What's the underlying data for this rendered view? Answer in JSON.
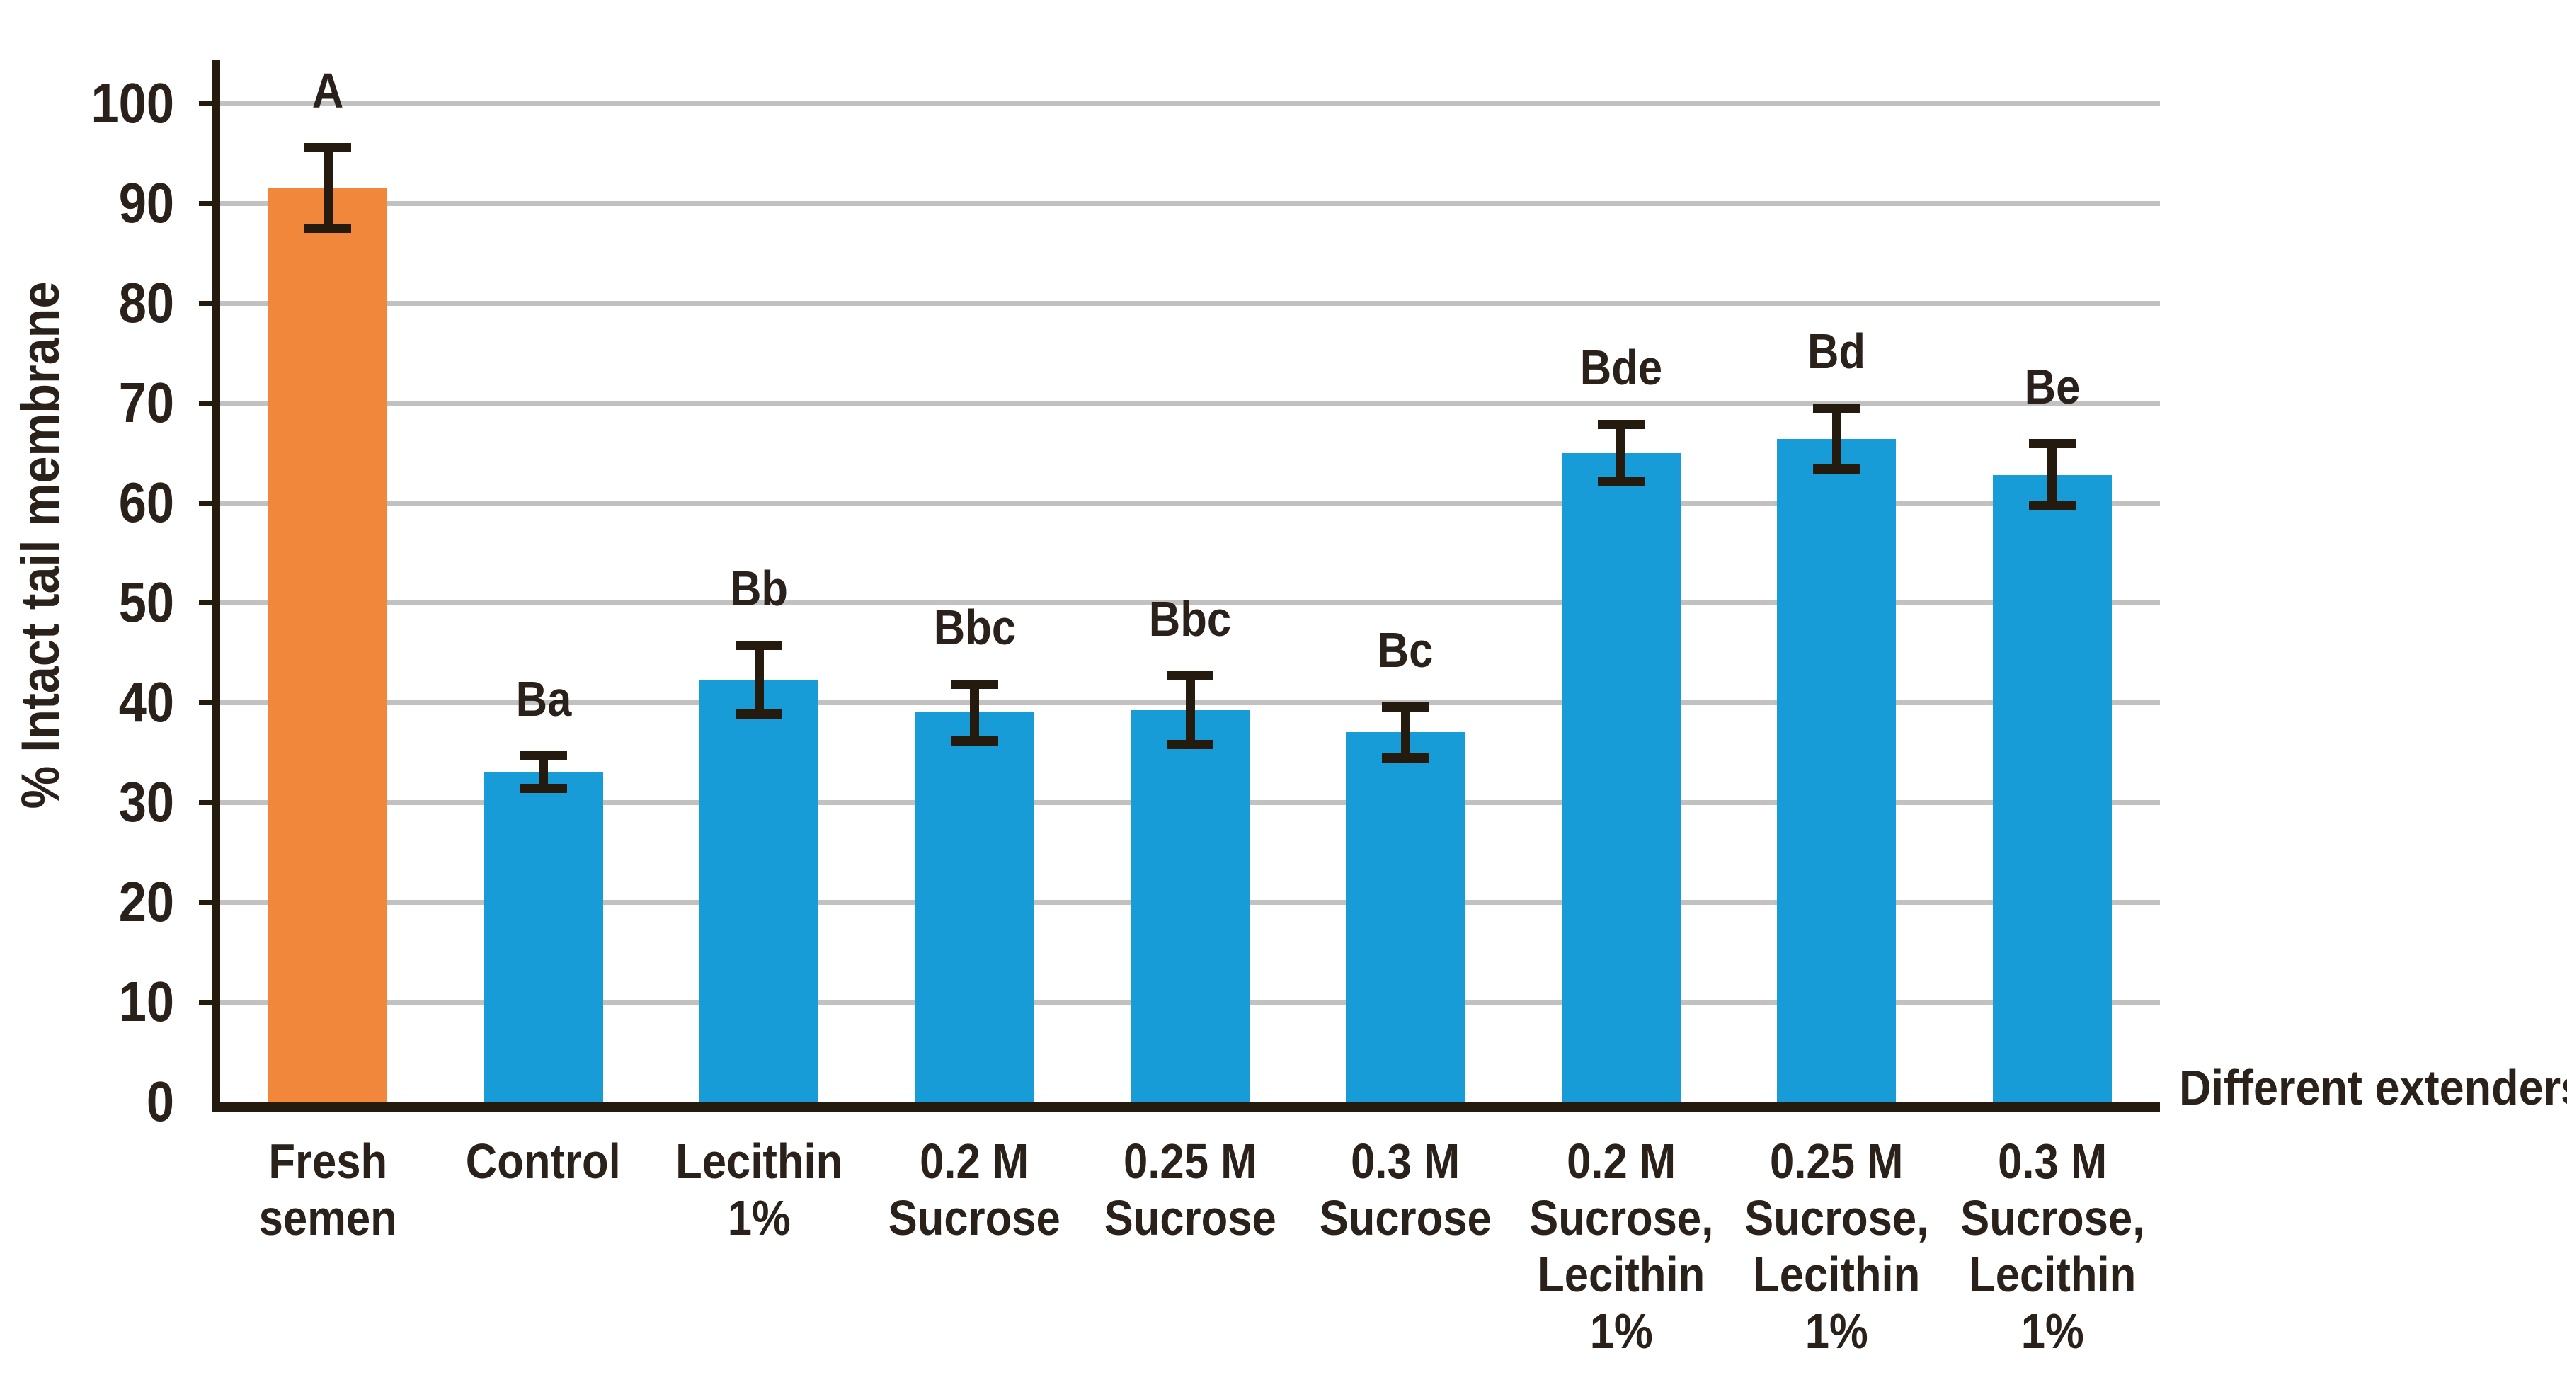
{
  "figure": {
    "y_axis_title": "% Intact tail membrane",
    "x_axis_title": "Different extenders"
  },
  "chart_data": {
    "type": "bar",
    "title": "",
    "ylabel": "% Intact tail membrane",
    "xlabel": "Different extenders",
    "ylim": [
      0,
      100
    ],
    "yticks": [
      0,
      10,
      20,
      30,
      40,
      50,
      60,
      70,
      80,
      90,
      100
    ],
    "grid": true,
    "legend": "none",
    "categories": [
      "Fresh\nsemen",
      "Control",
      "Lecithin\n1%",
      "0.2 M\nSucrose",
      "0.25 M\nSucrose",
      "0.3 M\nSucrose",
      "0.2 M\nSucrose,\nLecithin\n1%",
      "0.25 M\nSucrose,\nLecithin\n1%",
      "0.3 M\nSucrose,\nLecithin\n1%"
    ],
    "values": [
      91.5,
      33.0,
      42.3,
      39.0,
      39.2,
      37.0,
      65.0,
      66.4,
      62.8
    ],
    "errors": [
      4.5,
      2.1,
      3.9,
      3.3,
      3.9,
      3.0,
      3.3,
      3.5,
      3.6
    ],
    "significance_labels": [
      "A",
      "Ba",
      "Bb",
      "Bbc",
      "Bbc",
      "Bc",
      "Bde",
      "Bd",
      "Be"
    ],
    "colors": {
      "highlight_bar": "#f1873b",
      "highlight_index": 0,
      "default_bar": "#189cd8",
      "gridline": "#c1c1c1",
      "axis": "#241b0e",
      "error_bar": "#241b0e",
      "text": "#29211a",
      "background": "#ffffff"
    }
  }
}
